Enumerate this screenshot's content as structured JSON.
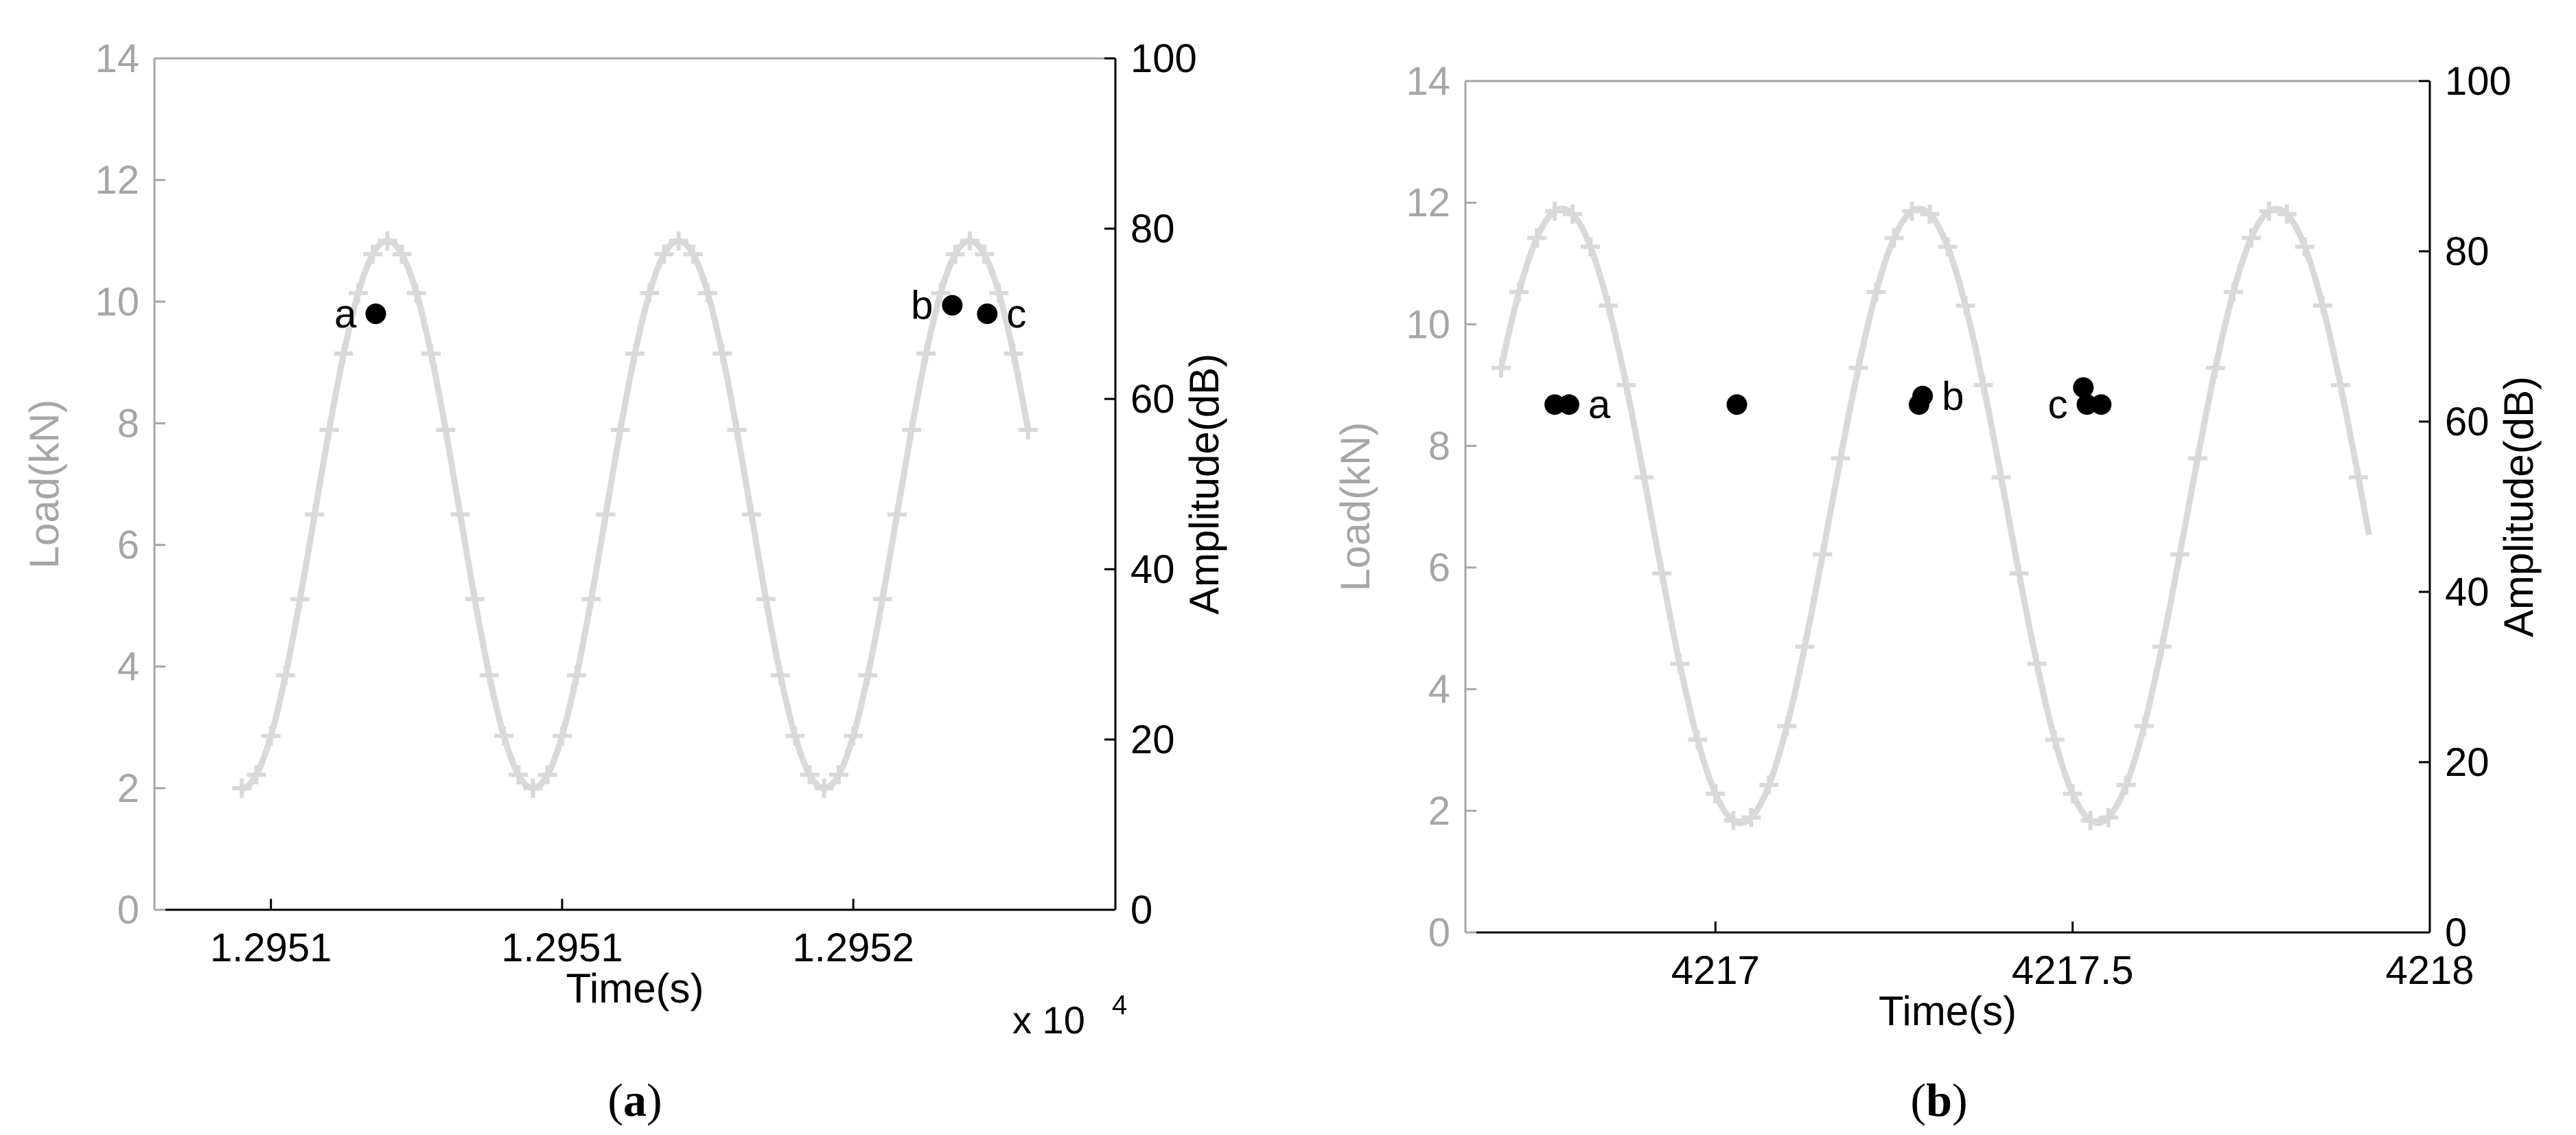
{
  "chart_data": [
    {
      "type": "line",
      "panel_label": "(a)",
      "xlabel": "Time(s)",
      "x_multiplier": "x 10",
      "x_multiplier_exp": "4",
      "xlim": [
        12950.75,
        12952.4
      ],
      "xticks": [
        {
          "value": 12950.95,
          "label": "1.2951"
        },
        {
          "value": 12951.45,
          "label": "1.2951"
        },
        {
          "value": 12951.95,
          "label": "1.2952"
        }
      ],
      "ylabel_left": "Load(kN)",
      "ylim_left": [
        0,
        14
      ],
      "yticks_left": [
        "0",
        "2",
        "4",
        "6",
        "8",
        "10",
        "12",
        "14"
      ],
      "ylabel_right": "Amplitude(dB)",
      "ylim_right": [
        0,
        100
      ],
      "yticks_right": [
        "0",
        "20",
        "40",
        "60",
        "80",
        "100"
      ],
      "load_curve": {
        "min": 2,
        "max": 11,
        "period": 0.5,
        "first_peak_time": 12951.15,
        "x_start": 12950.9,
        "x_end": 12952.25
      },
      "ae_hits": [
        {
          "x": 12951.13,
          "amplitude": 70,
          "label": "a",
          "label_side": "left"
        },
        {
          "x": 12952.12,
          "amplitude": 71,
          "label": "b",
          "label_side": "left"
        },
        {
          "x": 12952.18,
          "amplitude": 70,
          "label": "c",
          "label_side": "right"
        }
      ],
      "colors": {
        "load": "#d9d9d9",
        "ae": "#000000",
        "left_axis": "#a6a6a6",
        "right_axis": "#000000"
      }
    },
    {
      "type": "line",
      "panel_label": "(b)",
      "xlabel": "Time(s)",
      "xlim": [
        4216.65,
        4218.0
      ],
      "xticks": [
        {
          "value": 4217.0,
          "label": "4217"
        },
        {
          "value": 4217.5,
          "label": "4217.5"
        },
        {
          "value": 4218.0,
          "label": "4218"
        }
      ],
      "ylabel_left": "Load(kN)",
      "ylim_left": [
        0,
        14
      ],
      "yticks_left": [
        "0",
        "2",
        "4",
        "6",
        "8",
        "10",
        "12",
        "14"
      ],
      "ylabel_right": "Amplitude(dB)",
      "ylim_right": [
        0,
        100
      ],
      "yticks_right": [
        "0",
        "20",
        "40",
        "60",
        "80",
        "100"
      ],
      "load_curve": {
        "min": 1.8,
        "max": 11.9,
        "period": 0.5,
        "first_peak_time": 4216.785,
        "x_start": 4216.7,
        "x_end": 4217.915
      },
      "ae_hits": [
        {
          "x": 4216.775,
          "amplitude": 62
        },
        {
          "x": 4216.795,
          "amplitude": 62,
          "label": "a",
          "label_side": "right"
        },
        {
          "x": 4217.03,
          "amplitude": 62
        },
        {
          "x": 4217.285,
          "amplitude": 62
        },
        {
          "x": 4217.29,
          "amplitude": 63,
          "label": "b",
          "label_side": "right"
        },
        {
          "x": 4217.515,
          "amplitude": 64
        },
        {
          "x": 4217.52,
          "amplitude": 62,
          "label": "c",
          "label_side": "left"
        },
        {
          "x": 4217.54,
          "amplitude": 62
        }
      ],
      "colors": {
        "load": "#d9d9d9",
        "ae": "#000000",
        "left_axis": "#a6a6a6",
        "right_axis": "#000000"
      }
    }
  ]
}
